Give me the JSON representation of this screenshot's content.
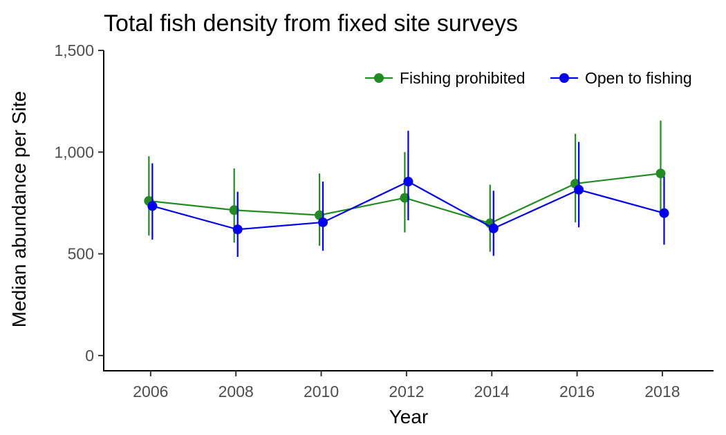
{
  "chart_data": {
    "type": "line",
    "title": "Total fish density from fixed site surveys",
    "xlabel": "Year",
    "ylabel": "Median abundance per Site",
    "x": [
      2006,
      2008,
      2010,
      2012,
      2014,
      2016,
      2018
    ],
    "x_tick_labels": [
      "2006",
      "2008",
      "2010",
      "2012",
      "2014",
      "2016",
      "2018"
    ],
    "xlim": [
      2004.9,
      2019.2
    ],
    "ylim": [
      -75,
      1500
    ],
    "y_ticks": [
      0,
      500,
      1000,
      1500
    ],
    "y_tick_labels": [
      "0",
      "500",
      "1,000",
      "1,500"
    ],
    "legend_position": "top-right",
    "series": [
      {
        "name": "Fishing prohibited",
        "color": "#228B22",
        "values": [
          760,
          715,
          690,
          775,
          650,
          845,
          895
        ],
        "lower": [
          590,
          555,
          540,
          605,
          510,
          655,
          700
        ],
        "upper": [
          980,
          920,
          895,
          1000,
          840,
          1090,
          1155
        ]
      },
      {
        "name": "Open to fishing",
        "color": "#0000EE",
        "values": [
          735,
          620,
          655,
          855,
          625,
          815,
          700
        ],
        "lower": [
          570,
          485,
          515,
          665,
          490,
          630,
          545
        ],
        "upper": [
          945,
          805,
          855,
          1105,
          810,
          1050,
          880
        ]
      }
    ]
  }
}
